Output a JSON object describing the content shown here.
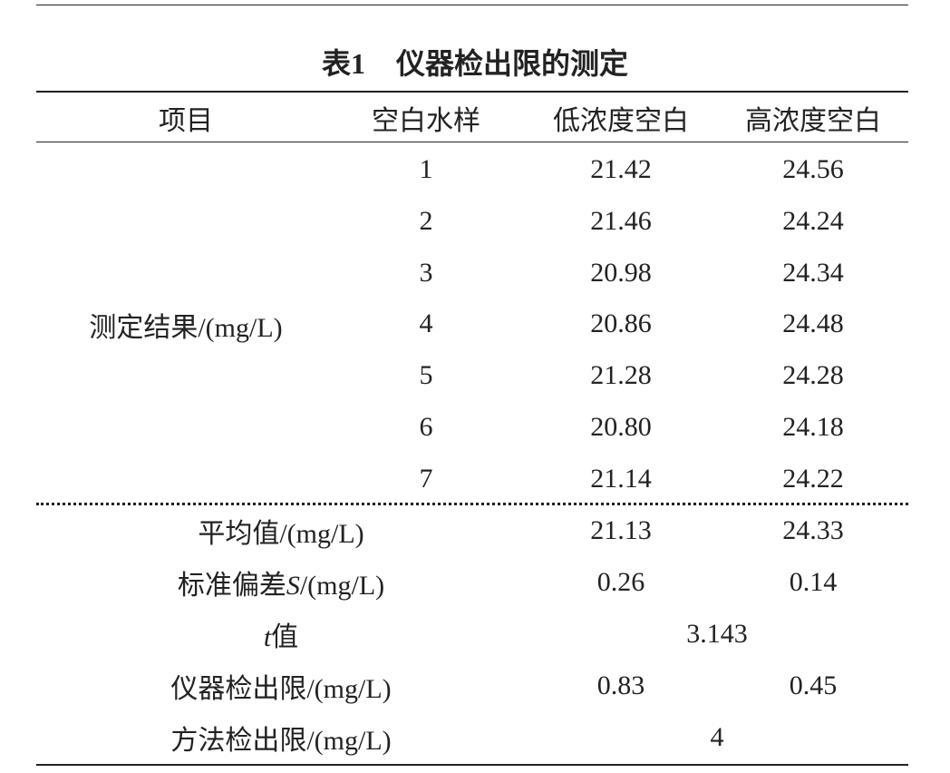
{
  "caption": {
    "number": "表1",
    "title": "仪器检出限的测定"
  },
  "table": {
    "header": [
      "项目",
      "空白水样",
      "低浓度空白",
      "高浓度空白"
    ],
    "group_label": "测定结果/(mg/L)",
    "rows": [
      [
        "1",
        "21.42",
        "24.56"
      ],
      [
        "2",
        "21.46",
        "24.24"
      ],
      [
        "3",
        "20.98",
        "24.34"
      ],
      [
        "4",
        "20.86",
        "24.48"
      ],
      [
        "5",
        "21.28",
        "24.28"
      ],
      [
        "6",
        "20.80",
        "24.18"
      ],
      [
        "7",
        "21.14",
        "24.22"
      ]
    ],
    "summary": [
      {
        "label": [
          "平均值/(mg/L)"
        ],
        "values": [
          "21.13",
          "24.33"
        ]
      },
      {
        "label": [
          "标准偏差",
          "S",
          "/(mg/L)"
        ],
        "values": [
          "0.26",
          "0.14"
        ]
      },
      {
        "label": [
          "t",
          "值"
        ],
        "values": [
          "3.143"
        ]
      },
      {
        "label": [
          "仪器检出限/(mg/L)"
        ],
        "values": [
          "0.83",
          "0.45"
        ]
      },
      {
        "label": [
          "方法检出限/(mg/L)"
        ],
        "values": [
          "4"
        ]
      }
    ]
  }
}
